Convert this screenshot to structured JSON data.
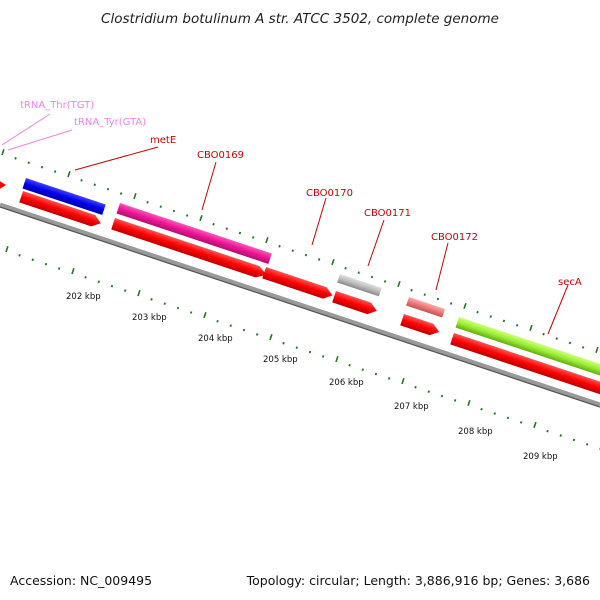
{
  "title": "Clostridium botulinum A str. ATCC 3502, complete genome",
  "footer": {
    "accession": "Accession: NC_009495",
    "summary": "Topology: circular; Length: 3,886,916 bp; Genes: 3,686"
  },
  "ticks": [
    "202 kbp",
    "203 kbp",
    "204 kbp",
    "205 kbp",
    "206 kbp",
    "207 kbp",
    "208 kbp",
    "209 kbp"
  ],
  "labels": {
    "trna_thr": "tRNA_Thr(TGT)",
    "trna_tyr": "tRNA_Tyr(GTA)",
    "mete": "metE",
    "cbo0169": "CBO0169",
    "cbo0170": "CBO0170",
    "cbo0171": "CBO0171",
    "cbo0172": "CBO0172",
    "seca": "secA"
  },
  "colors": {
    "cds": "#ff0000",
    "trna": "#ee82ee",
    "label_red": "#cc0000",
    "mete": "#0000ee",
    "cbo0169": "#ee1493",
    "cbo0171": "#bbbbbb",
    "cbo0172": "#ee7777",
    "seca": "#99ee33",
    "tick": "#227722",
    "backbone": "#777777"
  }
}
